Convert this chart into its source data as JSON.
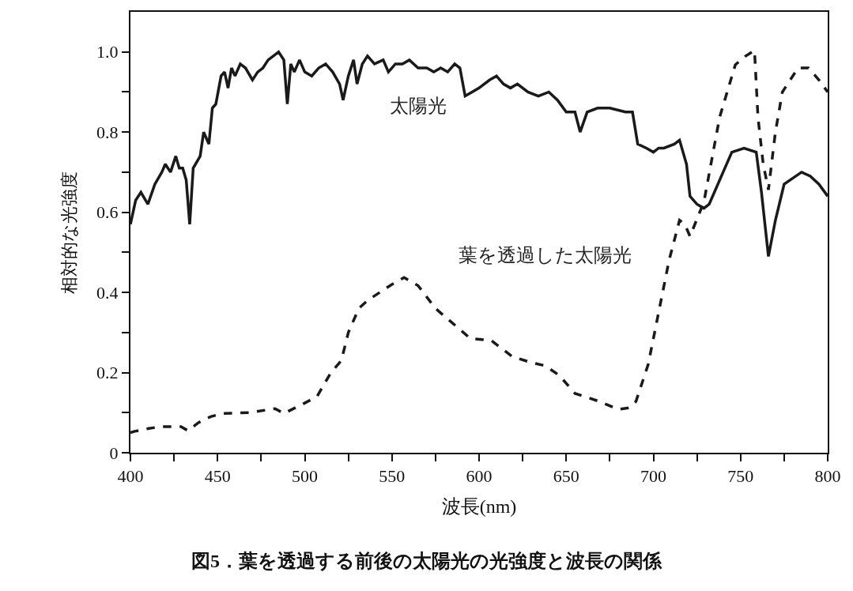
{
  "chart_data": {
    "type": "line",
    "title": "図5．葉を透過する前後の太陽光の光強度と波長の関係",
    "xlabel": "波長(nm)",
    "ylabel": "相対的な光強度",
    "xlim": [
      400,
      800
    ],
    "ylim": [
      0,
      1.1
    ],
    "xticks": [
      400,
      {
        "value": 425,
        "label": null
      },
      450,
      {
        "value": 475,
        "label": null
      },
      500,
      {
        "value": 525,
        "label": null
      },
      550,
      {
        "value": 575,
        "label": null
      },
      600,
      {
        "value": 625,
        "label": null
      },
      650,
      {
        "value": 675,
        "label": null
      },
      700,
      {
        "value": 725,
        "label": null
      },
      750,
      {
        "value": 775,
        "label": null
      },
      800
    ],
    "yticks": [
      0,
      {
        "value": 0.1,
        "label": null
      },
      0.2,
      {
        "value": 0.3,
        "label": null
      },
      0.4,
      {
        "value": 0.5,
        "label": null
      },
      0.6,
      {
        "value": 0.7,
        "label": null
      },
      0.8,
      {
        "value": 0.9,
        "label": null
      },
      {
        "value": 1,
        "label": "1.0"
      }
    ],
    "grid": false,
    "legend": false,
    "marker": "none",
    "series": [
      {
        "name": "太陽光",
        "color": "#1a1a1a",
        "line_style": "solid",
        "x": [
          400,
          403,
          406,
          410,
          414,
          418,
          420,
          423,
          426,
          428,
          430,
          432,
          434,
          436,
          440,
          442,
          445,
          447,
          449,
          452,
          454,
          456,
          458,
          460,
          463,
          466,
          470,
          473,
          476,
          479,
          482,
          485,
          488,
          490,
          492,
          494,
          497,
          500,
          504,
          508,
          512,
          516,
          520,
          522,
          525,
          528,
          530,
          533,
          536,
          540,
          545,
          548,
          552,
          556,
          560,
          565,
          570,
          574,
          578,
          582,
          586,
          589,
          592,
          596,
          600,
          606,
          610,
          614,
          618,
          622,
          628,
          634,
          640,
          645,
          650,
          655,
          658,
          662,
          668,
          675,
          684,
          688,
          691,
          696,
          700,
          703,
          706,
          712,
          715,
          719,
          721,
          725,
          729,
          732,
          740,
          745,
          752,
          759,
          762,
          766,
          770,
          775,
          785,
          790,
          795,
          800
        ],
        "values": [
          0.57,
          0.63,
          0.65,
          0.62,
          0.67,
          0.7,
          0.72,
          0.7,
          0.74,
          0.71,
          0.71,
          0.68,
          0.57,
          0.71,
          0.74,
          0.8,
          0.77,
          0.86,
          0.87,
          0.94,
          0.95,
          0.91,
          0.96,
          0.94,
          0.97,
          0.96,
          0.93,
          0.95,
          0.96,
          0.98,
          0.99,
          1.0,
          0.98,
          0.87,
          0.97,
          0.95,
          0.98,
          0.95,
          0.94,
          0.96,
          0.97,
          0.95,
          0.92,
          0.88,
          0.94,
          0.98,
          0.92,
          0.97,
          0.99,
          0.97,
          0.98,
          0.95,
          0.97,
          0.97,
          0.98,
          0.96,
          0.96,
          0.95,
          0.96,
          0.95,
          0.97,
          0.96,
          0.89,
          0.9,
          0.91,
          0.93,
          0.94,
          0.92,
          0.91,
          0.92,
          0.9,
          0.89,
          0.9,
          0.88,
          0.85,
          0.85,
          0.8,
          0.85,
          0.86,
          0.86,
          0.85,
          0.85,
          0.77,
          0.76,
          0.75,
          0.76,
          0.76,
          0.77,
          0.78,
          0.72,
          0.64,
          0.62,
          0.61,
          0.62,
          0.7,
          0.75,
          0.76,
          0.75,
          0.65,
          0.49,
          0.58,
          0.67,
          0.7,
          0.69,
          0.67,
          0.64
        ]
      },
      {
        "name": "葉を透過した太陽光",
        "color": "#1a1a1a",
        "line_style": "dashed",
        "x": [
          400,
          402,
          410,
          417,
          429,
          433,
          439,
          446,
          453,
          468,
          483,
          488,
          500,
          507,
          515,
          521,
          525,
          531,
          536,
          543,
          550,
          557,
          565,
          575,
          587,
          595,
          607,
          619,
          630,
          638,
          646,
          655,
          662,
          669,
          680,
          686,
          690,
          697,
          703,
          709,
          715,
          718,
          721,
          729,
          738,
          747,
          753,
          758,
          760,
          763,
          766,
          770,
          774,
          783,
          789,
          795,
          800
        ],
        "values": [
          0.05,
          0.053,
          0.06,
          0.065,
          0.065,
          0.055,
          0.075,
          0.09,
          0.098,
          0.1,
          0.11,
          0.098,
          0.124,
          0.14,
          0.2,
          0.23,
          0.3,
          0.36,
          0.38,
          0.4,
          0.42,
          0.437,
          0.417,
          0.36,
          0.315,
          0.285,
          0.28,
          0.24,
          0.225,
          0.217,
          0.193,
          0.148,
          0.138,
          0.128,
          0.108,
          0.112,
          0.128,
          0.22,
          0.35,
          0.48,
          0.58,
          0.57,
          0.54,
          0.626,
          0.837,
          0.968,
          0.99,
          1.004,
          0.837,
          0.72,
          0.656,
          0.8,
          0.9,
          0.96,
          0.96,
          0.93,
          0.9
        ]
      }
    ]
  }
}
